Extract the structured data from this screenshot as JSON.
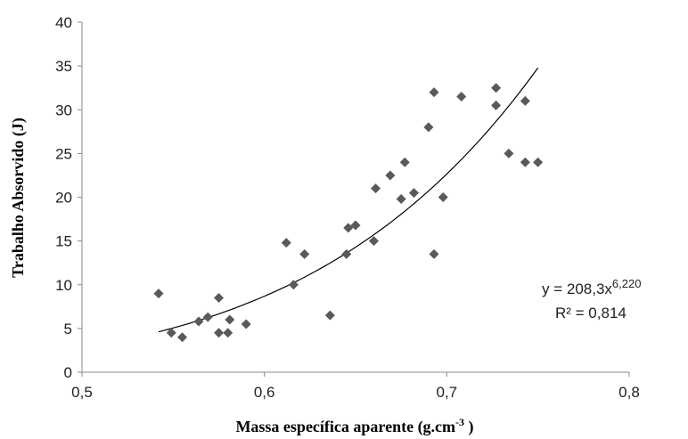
{
  "chart_data": {
    "type": "scatter",
    "xlabel": "Massa específica aparente (g.cm",
    "xlabel_sup": "-3",
    "xlabel_close": " )",
    "ylabel": "Trabalho Absorvido (J)",
    "xlim": [
      0.5,
      0.8
    ],
    "ylim": [
      0,
      40
    ],
    "x_ticks": [
      "0,5",
      "0,6",
      "0,7",
      "0,8"
    ],
    "x_tick_values": [
      0.5,
      0.6,
      0.7,
      0.8
    ],
    "y_ticks": [
      "0",
      "5",
      "10",
      "15",
      "20",
      "25",
      "30",
      "35",
      "40"
    ],
    "y_tick_values": [
      0,
      5,
      10,
      15,
      20,
      25,
      30,
      35,
      40
    ],
    "grid": false,
    "marker": "diamond",
    "point_color": "#595959",
    "trendline": {
      "type": "power",
      "a": 208.3,
      "b": 6.22,
      "x_range": [
        0.542,
        0.75
      ],
      "equation_base": "y = 208,3x",
      "equation_exp": "6,220",
      "r_squared_label": "R² = 0,814"
    },
    "points": [
      {
        "x": 0.542,
        "y": 9.0
      },
      {
        "x": 0.549,
        "y": 4.5
      },
      {
        "x": 0.555,
        "y": 4.0
      },
      {
        "x": 0.564,
        "y": 5.8
      },
      {
        "x": 0.569,
        "y": 6.3
      },
      {
        "x": 0.575,
        "y": 8.5
      },
      {
        "x": 0.575,
        "y": 4.5
      },
      {
        "x": 0.58,
        "y": 4.5
      },
      {
        "x": 0.581,
        "y": 6.0
      },
      {
        "x": 0.59,
        "y": 5.5
      },
      {
        "x": 0.612,
        "y": 14.8
      },
      {
        "x": 0.616,
        "y": 10.0
      },
      {
        "x": 0.622,
        "y": 13.5
      },
      {
        "x": 0.636,
        "y": 6.5
      },
      {
        "x": 0.645,
        "y": 13.5
      },
      {
        "x": 0.646,
        "y": 16.5
      },
      {
        "x": 0.65,
        "y": 16.8
      },
      {
        "x": 0.66,
        "y": 15.0
      },
      {
        "x": 0.661,
        "y": 21.0
      },
      {
        "x": 0.669,
        "y": 22.5
      },
      {
        "x": 0.675,
        "y": 19.8
      },
      {
        "x": 0.677,
        "y": 24.0
      },
      {
        "x": 0.682,
        "y": 20.5
      },
      {
        "x": 0.69,
        "y": 28.0
      },
      {
        "x": 0.693,
        "y": 32.0
      },
      {
        "x": 0.693,
        "y": 13.5
      },
      {
        "x": 0.698,
        "y": 20.0
      },
      {
        "x": 0.708,
        "y": 31.5
      },
      {
        "x": 0.727,
        "y": 32.5
      },
      {
        "x": 0.727,
        "y": 30.5
      },
      {
        "x": 0.734,
        "y": 25.0
      },
      {
        "x": 0.743,
        "y": 31.0
      },
      {
        "x": 0.743,
        "y": 24.0
      },
      {
        "x": 0.75,
        "y": 24.0
      }
    ]
  }
}
